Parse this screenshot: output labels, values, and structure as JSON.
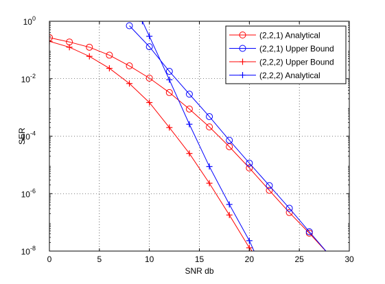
{
  "chart_data": {
    "type": "line",
    "title": "",
    "xlabel": "SNR db",
    "ylabel": "SER",
    "xlim": [
      0,
      30
    ],
    "ylim_exponents": [
      -8,
      0
    ],
    "y_scale": "log",
    "grid": true,
    "legend_position": "top-right",
    "x_ticks": [
      "0",
      "5",
      "10",
      "15",
      "20",
      "25",
      "30"
    ],
    "y_ticks": [
      {
        "base": "10",
        "exp": "0"
      },
      {
        "base": "10",
        "exp": "-2"
      },
      {
        "base": "10",
        "exp": "-4"
      },
      {
        "base": "10",
        "exp": "-6"
      },
      {
        "base": "10",
        "exp": "-8"
      }
    ],
    "series": [
      {
        "name": "(2,2,1) Analytical",
        "color": "#ff0000",
        "marker": "circle",
        "x": [
          0,
          2,
          4,
          6,
          8,
          10,
          12,
          14,
          16,
          18,
          20,
          22,
          24,
          26,
          28
        ],
        "y": [
          0.27,
          0.19,
          0.125,
          0.066,
          0.028,
          0.0105,
          0.0033,
          0.00088,
          0.00021,
          4.3e-05,
          7.8e-06,
          1.3e-06,
          2.2e-07,
          4.2e-08,
          7.3e-09
        ]
      },
      {
        "name": "(2,2,1) Upper Bound",
        "color": "#0000ff",
        "marker": "circle",
        "x": [
          8,
          10,
          12,
          14,
          16,
          18,
          20,
          22,
          24,
          26,
          28
        ],
        "y": [
          0.7,
          0.13,
          0.018,
          0.0029,
          0.00048,
          7.2e-05,
          1.15e-05,
          1.9e-06,
          3.1e-07,
          4.7e-08,
          7.3e-09
        ]
      },
      {
        "name": "(2,2,2) Upper Bound",
        "color": "#ff0000",
        "marker": "plus",
        "x": [
          0,
          2,
          4,
          6,
          8,
          10,
          12,
          14,
          16,
          18,
          20,
          20.8
        ],
        "y": [
          0.2,
          0.125,
          0.06,
          0.023,
          0.0068,
          0.00148,
          0.0002,
          2.5e-05,
          2.3e-06,
          1.8e-07,
          1.3e-08,
          6e-09
        ]
      },
      {
        "name": "(2,2,2) Analytical",
        "color": "#0000ff",
        "marker": "plus",
        "x": [
          9.3,
          10,
          12,
          14,
          16,
          18,
          20,
          20.6
        ],
        "y": [
          1.0,
          0.3,
          0.0092,
          0.00026,
          8.8e-06,
          4.2e-07,
          2.3e-08,
          8e-09
        ]
      }
    ]
  }
}
